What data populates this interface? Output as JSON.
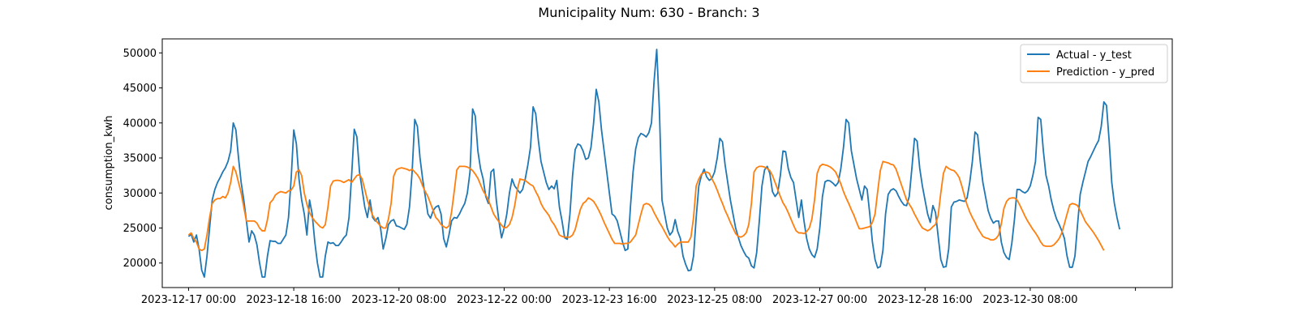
{
  "chart_data": {
    "type": "line",
    "title": "Municipality Num: 630 - Branch: 3",
    "xlabel": "",
    "ylabel": "consumption_kwh",
    "x_start": "2023-12-17 00:00",
    "x_step": "1h",
    "xlim": [
      "2023-12-16 14:00",
      "2024-01-01 14:00"
    ],
    "ylim": [
      16500,
      52000
    ],
    "y_ticks": [
      20000,
      25000,
      30000,
      35000,
      40000,
      45000,
      50000
    ],
    "x_ticks": [
      "2023-12-17 00:00",
      "2023-12-18 16:00",
      "2023-12-20 08:00",
      "2023-12-22 00:00",
      "2023-12-23 16:00",
      "2023-12-25 08:00",
      "2023-12-27 00:00",
      "2023-12-28 16:00",
      "2023-12-30 08:00",
      ""
    ],
    "grid": false,
    "legend": "top-right",
    "series": [
      {
        "name": "Actual - y_test",
        "color": "#1f77b4",
        "values": [
          23800,
          24100,
          23000,
          24000,
          22000,
          19000,
          18000,
          21000,
          25000,
          29000,
          30500,
          31500,
          32200,
          33000,
          33600,
          34500,
          36000,
          40000,
          39000,
          35000,
          31500,
          29000,
          26000,
          23000,
          24600,
          24000,
          22600,
          20000,
          18000,
          18000,
          21000,
          23200,
          23100,
          23100,
          22800,
          22800,
          23400,
          24000,
          26500,
          32000,
          39000,
          37000,
          32000,
          29000,
          27000,
          24000,
          29000,
          27000,
          23000,
          20000,
          18000,
          18000,
          21000,
          23000,
          22800,
          22900,
          22500,
          22500,
          23000,
          23600,
          24000,
          26500,
          32500,
          39100,
          38000,
          33000,
          30500,
          28000,
          26500,
          29000,
          26500,
          26000,
          26500,
          25000,
          22000,
          23500,
          25500,
          26000,
          26200,
          25300,
          25200,
          25000,
          24800,
          25500,
          28000,
          33000,
          40500,
          39500,
          35000,
          32000,
          29500,
          27000,
          26400,
          27500,
          28000,
          28200,
          27000,
          23500,
          22300,
          24000,
          26000,
          26500,
          26400,
          27000,
          27800,
          28500,
          30000,
          33000,
          42000,
          41000,
          36000,
          33500,
          32000,
          29500,
          28500,
          33000,
          33400,
          29000,
          26000,
          23600,
          25000,
          27000,
          30000,
          32000,
          31000,
          30500,
          30000,
          30500,
          32000,
          34000,
          36500,
          42300,
          41300,
          37500,
          34500,
          33000,
          31500,
          30500,
          31000,
          30600,
          31800,
          28000,
          26000,
          23600,
          23400,
          27000,
          32500,
          36200,
          37000,
          36800,
          36000,
          34800,
          35000,
          36500,
          40000,
          44800,
          43000,
          39000,
          36000,
          33000,
          30000,
          27000,
          26700,
          26000,
          24500,
          23000,
          21800,
          22000,
          28000,
          33000,
          36300,
          37900,
          38500,
          38300,
          38000,
          38600,
          40000,
          46000,
          50500,
          42000,
          29000,
          27000,
          25000,
          24000,
          24500,
          26200,
          24500,
          23500,
          21000,
          19800,
          18900,
          19000,
          21000,
          26500,
          31000,
          32500,
          33400,
          32300,
          31800,
          32100,
          33000,
          35000,
          37800,
          37300,
          34000,
          31500,
          29000,
          27000,
          25000,
          23700,
          22500,
          21700,
          21000,
          20700,
          19600,
          19300,
          21500,
          26000,
          31000,
          33300,
          33800,
          32800,
          30200,
          29500,
          30000,
          32500,
          36000,
          35900,
          33500,
          32200,
          31500,
          29000,
          26500,
          29000,
          26000,
          23500,
          22000,
          21200,
          20800,
          22000,
          25000,
          29500,
          31600,
          31800,
          31700,
          31400,
          31000,
          31500,
          33500,
          36500,
          40500,
          40000,
          36000,
          34000,
          32000,
          30500,
          29000,
          31000,
          30500,
          27000,
          23000,
          20500,
          19300,
          19500,
          21800,
          27000,
          29800,
          30400,
          30600,
          30300,
          29500,
          28800,
          28300,
          28200,
          29500,
          33500,
          37800,
          37400,
          33500,
          31000,
          29000,
          27000,
          25800,
          28200,
          27200,
          23800,
          20500,
          19400,
          19500,
          22000,
          28000,
          28700,
          28800,
          29000,
          28900,
          28800,
          29300,
          31500,
          34500,
          38700,
          38300,
          34500,
          31500,
          29500,
          27500,
          26400,
          25700,
          26000,
          26000,
          23000,
          21500,
          20800,
          20500,
          22800,
          26200,
          30500,
          30500,
          30200,
          30000,
          30300,
          31000,
          32500,
          34500,
          40800,
          40500,
          36000,
          32500,
          31000,
          29000,
          27500,
          26300,
          25500,
          24600,
          23500,
          21000,
          19400,
          19400,
          21000,
          25500,
          29800,
          31500,
          33000,
          34500,
          35200,
          36000,
          36800,
          37500,
          39500,
          43000,
          42500,
          37500,
          31500,
          28500,
          26500,
          24800
        ]
      },
      {
        "name": "Prediction - y_pred",
        "color": "#ff7f0e",
        "values": [
          24000,
          24300,
          23500,
          23000,
          22000,
          21800,
          22000,
          24000,
          26500,
          28500,
          29000,
          29200,
          29200,
          29500,
          29300,
          30000,
          31500,
          33800,
          33000,
          31500,
          30000,
          28000,
          26000,
          26000,
          26000,
          26000,
          25700,
          25000,
          24600,
          24600,
          26200,
          28600,
          29000,
          29700,
          30000,
          30200,
          30100,
          30000,
          30300,
          30400,
          31000,
          33000,
          33300,
          32500,
          30000,
          28400,
          27200,
          26500,
          26000,
          25600,
          25200,
          25000,
          25500,
          28000,
          31000,
          31700,
          31800,
          31800,
          31700,
          31500,
          31700,
          31900,
          31500,
          32000,
          32500,
          32600,
          32000,
          30500,
          29000,
          27800,
          26800,
          26200,
          25700,
          25300,
          25000,
          25000,
          26300,
          28500,
          32400,
          33300,
          33500,
          33600,
          33500,
          33400,
          33200,
          33400,
          33000,
          32600,
          32000,
          31000,
          30200,
          29500,
          28500,
          27500,
          26500,
          26100,
          25500,
          25200,
          25000,
          25300,
          27300,
          30200,
          33300,
          33800,
          33800,
          33800,
          33700,
          33500,
          33200,
          32700,
          32100,
          31200,
          30300,
          29700,
          29000,
          28000,
          27000,
          26400,
          25900,
          25400,
          25000,
          25100,
          25500,
          26500,
          28200,
          30500,
          32000,
          31900,
          31800,
          31500,
          31200,
          31000,
          30200,
          29500,
          28500,
          27800,
          27300,
          26800,
          26000,
          25500,
          24800,
          24000,
          23800,
          23700,
          23700,
          23700,
          24000,
          24800,
          26300,
          27700,
          28500,
          28800,
          29300,
          29100,
          28800,
          28200,
          27500,
          26700,
          25800,
          25000,
          24200,
          23400,
          22800,
          22800,
          22800,
          22700,
          22800,
          22800,
          23000,
          23500,
          24000,
          25500,
          27000,
          28300,
          28500,
          28400,
          28000,
          27200,
          26500,
          25800,
          25200,
          24500,
          23800,
          23200,
          22800,
          22300,
          22700,
          23000,
          23000,
          23000,
          23000,
          23700,
          26500,
          31000,
          32000,
          32700,
          32900,
          33000,
          32800,
          32000,
          31300,
          30400,
          29400,
          28500,
          27500,
          26700,
          25800,
          25000,
          24200,
          23800,
          23700,
          23900,
          24300,
          25500,
          28500,
          33000,
          33600,
          33800,
          33800,
          33700,
          33500,
          33200,
          32500,
          31500,
          30500,
          29500,
          28600,
          28000,
          27200,
          26300,
          25400,
          24600,
          24300,
          24300,
          24200,
          24500,
          25000,
          26300,
          29000,
          32800,
          33800,
          34100,
          34000,
          33900,
          33700,
          33400,
          33000,
          32200,
          31300,
          30200,
          29300,
          28500,
          27600,
          26800,
          25800,
          24900,
          24900,
          25000,
          25100,
          25200,
          25800,
          27000,
          30200,
          33200,
          34500,
          34400,
          34300,
          34100,
          34000,
          33400,
          32300,
          31200,
          30100,
          29000,
          28400,
          27800,
          27000,
          26300,
          25600,
          25000,
          24800,
          24600,
          24800,
          25200,
          25500,
          26800,
          30000,
          32800,
          33800,
          33500,
          33300,
          33200,
          32800,
          32200,
          31000,
          29600,
          28300,
          27300,
          26500,
          25800,
          25000,
          24400,
          23800,
          23600,
          23500,
          23300,
          23300,
          23500,
          24000,
          25600,
          27800,
          28800,
          29200,
          29300,
          29300,
          29000,
          28300,
          27500,
          26700,
          26000,
          25400,
          24800,
          24300,
          23700,
          23000,
          22500,
          22400,
          22400,
          22400,
          22600,
          23000,
          23500,
          24300,
          25600,
          27000,
          28300,
          28500,
          28400,
          28200,
          27500,
          26700,
          25900,
          25400,
          24900,
          24400,
          23800,
          23200,
          22500,
          21800
        ]
      }
    ]
  }
}
